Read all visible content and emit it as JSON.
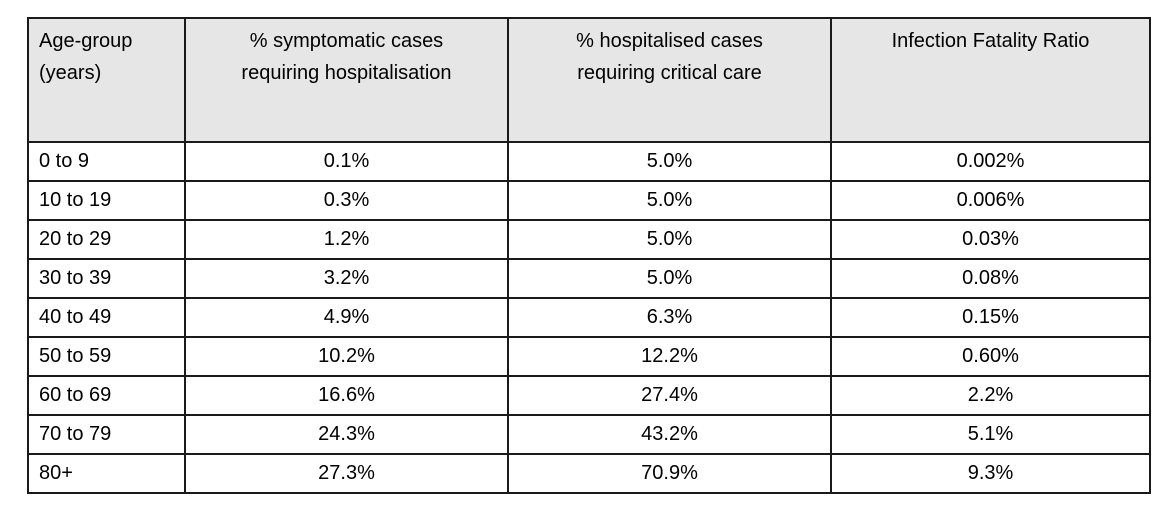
{
  "page": {
    "background_color": "#ffffff",
    "border_color": "#1a1a1a",
    "header_bg_color": "#e7e6e6",
    "text_color": "#000000"
  },
  "table": {
    "headers": [
      "Age-group\n(years)",
      "% symptomatic cases\nrequiring hospitalisation",
      "% hospitalised cases\nrequiring critical care",
      "Infection Fatality Ratio"
    ],
    "rows": [
      [
        "0 to 9",
        "0.1%",
        "5.0%",
        "0.002%"
      ],
      [
        "10 to 19",
        "0.3%",
        "5.0%",
        "0.006%"
      ],
      [
        "20 to 29",
        "1.2%",
        "5.0%",
        "0.03%"
      ],
      [
        "30 to 39",
        "3.2%",
        "5.0%",
        "0.08%"
      ],
      [
        "40 to 49",
        "4.9%",
        "6.3%",
        "0.15%"
      ],
      [
        "50 to 59",
        "10.2%",
        "12.2%",
        "0.60%"
      ],
      [
        "60 to 69",
        "16.6%",
        "27.4%",
        "2.2%"
      ],
      [
        "70 to 79",
        "24.3%",
        "43.2%",
        "5.1%"
      ],
      [
        "80+",
        "27.3%",
        "70.9%",
        "9.3%"
      ]
    ]
  },
  "chart_data": {
    "type": "table",
    "title": "",
    "columns": [
      "Age-group (years)",
      "% symptomatic cases requiring hospitalisation",
      "% hospitalised cases requiring critical care",
      "Infection Fatality Ratio"
    ],
    "categories": [
      "0 to 9",
      "10 to 19",
      "20 to 29",
      "30 to 39",
      "40 to 49",
      "50 to 59",
      "60 to 69",
      "70 to 79",
      "80+"
    ],
    "series": [
      {
        "name": "% symptomatic cases requiring hospitalisation",
        "values": [
          0.1,
          0.3,
          1.2,
          3.2,
          4.9,
          10.2,
          16.6,
          24.3,
          27.3
        ],
        "unit": "%"
      },
      {
        "name": "% hospitalised cases requiring critical care",
        "values": [
          5.0,
          5.0,
          5.0,
          5.0,
          6.3,
          12.2,
          27.4,
          43.2,
          70.9
        ],
        "unit": "%"
      },
      {
        "name": "Infection Fatality Ratio",
        "values": [
          0.002,
          0.006,
          0.03,
          0.08,
          0.15,
          0.6,
          2.2,
          5.1,
          9.3
        ],
        "unit": "%"
      }
    ]
  }
}
